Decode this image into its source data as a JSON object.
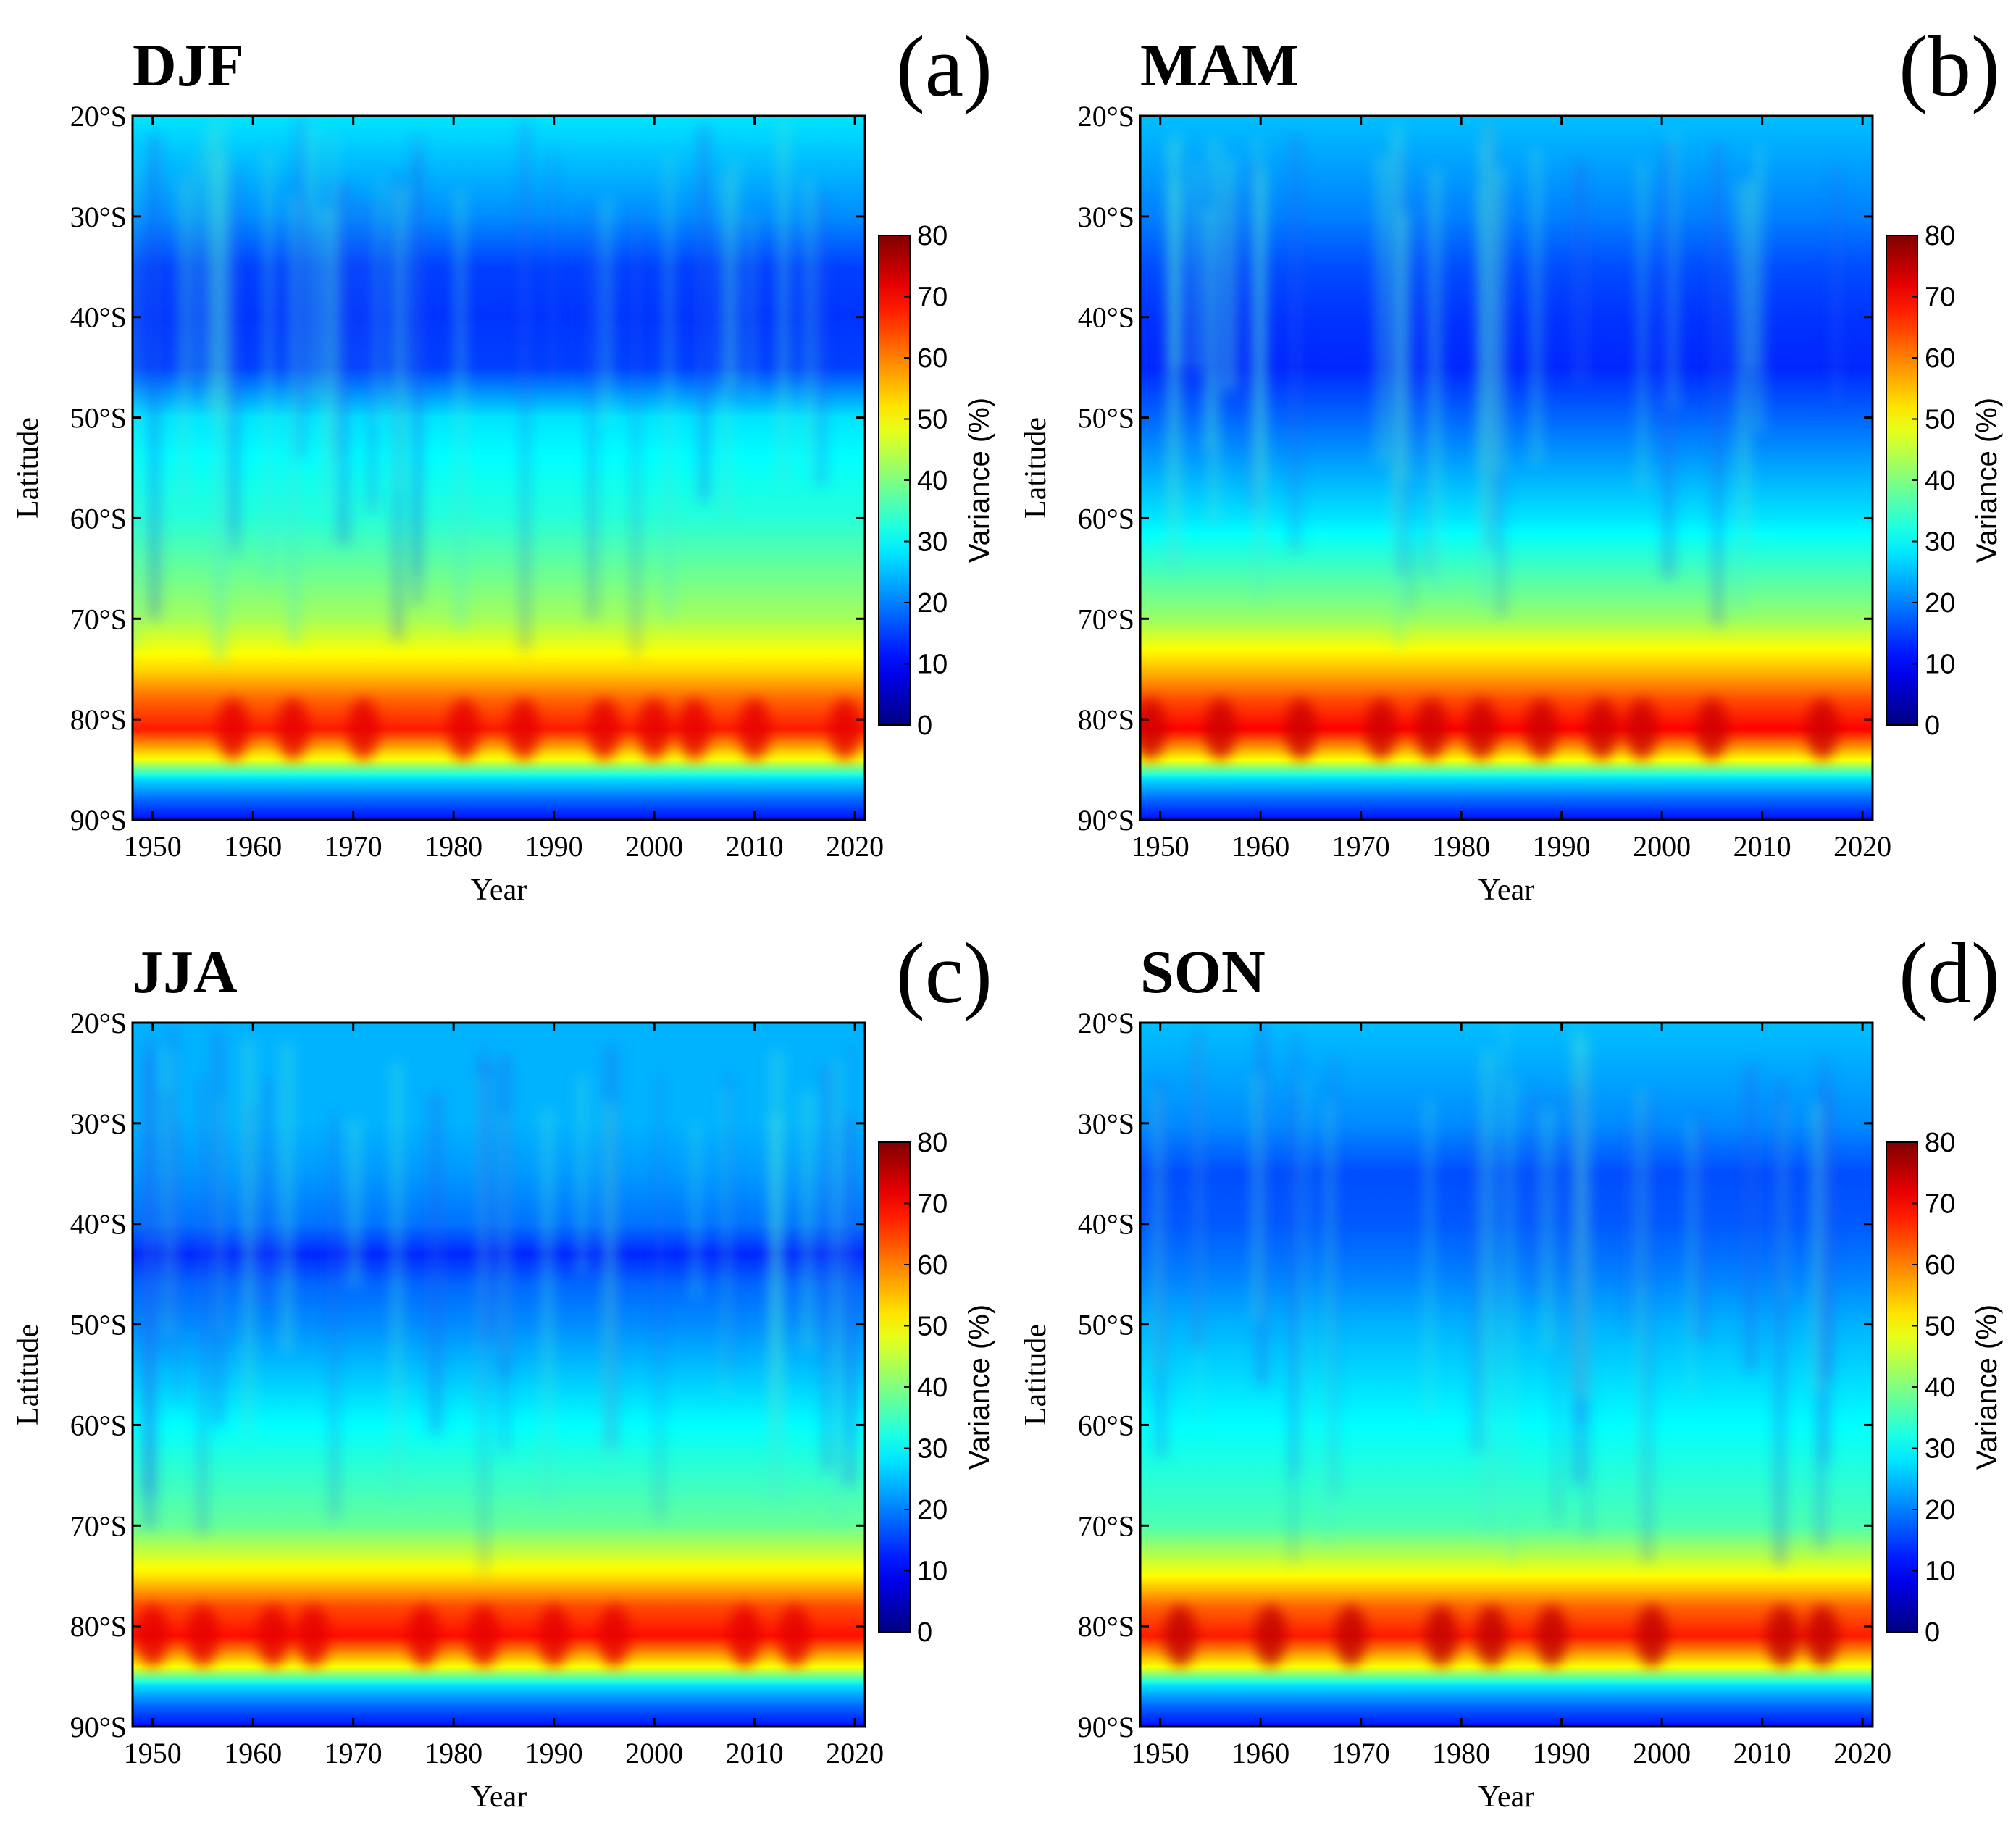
{
  "chart_data": [
    {
      "type": "heatmap",
      "title": "DJF",
      "panel_label": "(a)",
      "xlabel": "Year",
      "ylabel": "Latitude",
      "x_ticks": [
        "1950",
        "1960",
        "1970",
        "1980",
        "1990",
        "2000",
        "2010",
        "2020"
      ],
      "y_ticks": [
        "20°S",
        "30°S",
        "40°S",
        "50°S",
        "60°S",
        "70°S",
        "80°S",
        "90°S"
      ],
      "xlim": [
        1948,
        2021
      ],
      "ylim": [
        -90,
        -20
      ],
      "colorbar": {
        "label": "Variance (%)",
        "ticks": [
          "0",
          "10",
          "20",
          "30",
          "40",
          "50",
          "60",
          "70",
          "80"
        ],
        "range": [
          0,
          80
        ],
        "colormap": "jet"
      },
      "variance_by_latitude": {
        "latitude": [
          -20,
          -30,
          -35,
          -40,
          -45,
          -50,
          -60,
          -70,
          -75,
          -78,
          -81,
          -84,
          -86,
          -88,
          -90
        ],
        "variance": [
          28,
          21,
          15,
          14,
          15,
          28,
          33,
          43,
          53,
          62,
          68,
          49,
          27,
          18,
          11
        ]
      },
      "max_band": {
        "latitude": -81,
        "peak_years": [
          1958,
          1964,
          1971,
          1981,
          1987,
          1995,
          2000,
          2004,
          2010,
          2019
        ],
        "peak_variance": 72
      }
    },
    {
      "type": "heatmap",
      "title": "MAM",
      "panel_label": "(b)",
      "xlabel": "Year",
      "ylabel": "Latitude",
      "x_ticks": [
        "1950",
        "1960",
        "1970",
        "1980",
        "1990",
        "2000",
        "2010",
        "2020"
      ],
      "y_ticks": [
        "20°S",
        "30°S",
        "40°S",
        "50°S",
        "60°S",
        "70°S",
        "80°S",
        "90°S"
      ],
      "xlim": [
        1948,
        2021
      ],
      "ylim": [
        -90,
        -20
      ],
      "colorbar": {
        "label": "Variance (%)",
        "ticks": [
          "0",
          "10",
          "20",
          "30",
          "40",
          "50",
          "60",
          "70",
          "80"
        ],
        "range": [
          0,
          80
        ],
        "colormap": "jet"
      },
      "variance_by_latitude": {
        "latitude": [
          -20,
          -30,
          -35,
          -40,
          -45,
          -50,
          -60,
          -70,
          -75,
          -78,
          -81,
          -84,
          -86,
          -88,
          -90
        ],
        "variance": [
          25,
          20,
          16,
          14,
          13,
          18,
          28,
          42,
          55,
          64,
          70,
          50,
          27,
          18,
          11
        ]
      },
      "max_band": {
        "latitude": -81,
        "peak_years": [
          1949,
          1956,
          1964,
          1972,
          1977,
          1982,
          1988,
          1994,
          1998,
          2005,
          2016
        ],
        "peak_variance": 74
      }
    },
    {
      "type": "heatmap",
      "title": "JJA",
      "panel_label": "(c)",
      "xlabel": "Year",
      "ylabel": "Latitude",
      "x_ticks": [
        "1950",
        "1960",
        "1970",
        "1980",
        "1990",
        "2000",
        "2010",
        "2020"
      ],
      "y_ticks": [
        "20°S",
        "30°S",
        "40°S",
        "50°S",
        "60°S",
        "70°S",
        "80°S",
        "90°S"
      ],
      "xlim": [
        1948,
        2021
      ],
      "ylim": [
        -90,
        -20
      ],
      "colorbar": {
        "label": "Variance (%)",
        "ticks": [
          "0",
          "10",
          "20",
          "30",
          "40",
          "50",
          "60",
          "70",
          "80"
        ],
        "range": [
          0,
          80
        ],
        "colormap": "jet"
      },
      "variance_by_latitude": {
        "latitude": [
          -20,
          -30,
          -35,
          -40,
          -43,
          -46,
          -50,
          -60,
          -70,
          -75,
          -78,
          -81,
          -84,
          -86,
          -88,
          -90
        ],
        "variance": [
          24,
          24,
          22,
          19,
          13,
          18,
          21,
          30,
          38,
          52,
          64,
          69,
          50,
          27,
          18,
          11
        ]
      },
      "max_band": {
        "latitude": -81,
        "peak_years": [
          1950,
          1955,
          1962,
          1966,
          1977,
          1983,
          1990,
          1996,
          2009,
          2014
        ],
        "peak_variance": 72
      }
    },
    {
      "type": "heatmap",
      "title": "SON",
      "panel_label": "(d)",
      "xlabel": "Year",
      "ylabel": "Latitude",
      "x_ticks": [
        "1950",
        "1960",
        "1970",
        "1980",
        "1990",
        "2000",
        "2010",
        "2020"
      ],
      "y_ticks": [
        "20°S",
        "30°S",
        "40°S",
        "50°S",
        "60°S",
        "70°S",
        "80°S",
        "90°S"
      ],
      "xlim": [
        1948,
        2021
      ],
      "ylim": [
        -90,
        -20
      ],
      "colorbar": {
        "label": "Variance (%)",
        "ticks": [
          "0",
          "10",
          "20",
          "30",
          "40",
          "50",
          "60",
          "70",
          "80"
        ],
        "range": [
          0,
          80
        ],
        "colormap": "jet"
      },
      "variance_by_latitude": {
        "latitude": [
          -20,
          -30,
          -35,
          -40,
          -45,
          -50,
          -60,
          -70,
          -75,
          -78,
          -81,
          -84,
          -86,
          -88,
          -90
        ],
        "variance": [
          25,
          21,
          16,
          17,
          20,
          24,
          30,
          36,
          50,
          62,
          68,
          50,
          27,
          18,
          11
        ]
      },
      "max_band": {
        "latitude": -81,
        "peak_years": [
          1952,
          1961,
          1969,
          1978,
          1983,
          1989,
          1999,
          2012,
          2016
        ],
        "peak_variance": 75
      }
    }
  ]
}
